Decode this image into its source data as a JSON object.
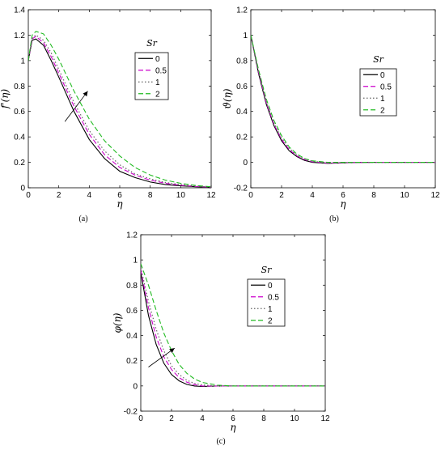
{
  "chart_data": [
    {
      "type": "line",
      "caption": "(a)",
      "xlabel": "η",
      "ylabel": "f'(η)",
      "xlim": [
        0,
        12
      ],
      "ylim": [
        0,
        1.4
      ],
      "xticks": [
        "0",
        "2",
        "4",
        "6",
        "8",
        "10",
        "12"
      ],
      "yticks": [
        "0",
        "0.2",
        "0.4",
        "0.6",
        "0.8",
        "1",
        "1.2",
        "1.4"
      ],
      "legend_title": "Sr",
      "legend_placement": "top-right",
      "x": [
        0,
        0.25,
        0.5,
        1,
        1.5,
        2,
        3,
        4,
        5,
        6,
        7,
        8,
        9,
        10,
        11,
        12
      ],
      "series": [
        {
          "name": "0",
          "color": "#000000",
          "style": "solid",
          "values": [
            1.0,
            1.16,
            1.17,
            1.12,
            1.0,
            0.87,
            0.6,
            0.38,
            0.23,
            0.13,
            0.08,
            0.045,
            0.025,
            0.015,
            0.008,
            0.004
          ]
        },
        {
          "name": "0.5",
          "color": "#cc00cc",
          "style": "dash",
          "values": [
            1.0,
            1.17,
            1.19,
            1.14,
            1.03,
            0.9,
            0.64,
            0.42,
            0.26,
            0.16,
            0.1,
            0.06,
            0.035,
            0.02,
            0.01,
            0.005
          ]
        },
        {
          "name": "1",
          "color": "#666666",
          "style": "dot",
          "values": [
            1.0,
            1.18,
            1.2,
            1.16,
            1.06,
            0.93,
            0.67,
            0.45,
            0.29,
            0.18,
            0.11,
            0.07,
            0.042,
            0.025,
            0.013,
            0.006
          ]
        },
        {
          "name": "2",
          "color": "#22bb22",
          "style": "dash",
          "values": [
            1.0,
            1.2,
            1.23,
            1.21,
            1.12,
            1.01,
            0.76,
            0.54,
            0.37,
            0.25,
            0.16,
            0.1,
            0.06,
            0.035,
            0.018,
            0.008
          ]
        }
      ],
      "arrow": {
        "from": [
          2.4,
          0.52
        ],
        "to": [
          3.9,
          0.76
        ]
      }
    },
    {
      "type": "line",
      "caption": "(b)",
      "xlabel": "η",
      "ylabel": "ϑ(η)",
      "xlim": [
        0,
        12
      ],
      "ylim": [
        -0.2,
        1.2
      ],
      "xticks": [
        "0",
        "2",
        "4",
        "6",
        "8",
        "10",
        "12"
      ],
      "yticks": [
        "-0.2",
        "0",
        "0.2",
        "0.4",
        "0.6",
        "0.8",
        "1",
        "1.2"
      ],
      "legend_title": "Sr",
      "legend_placement": "top-right",
      "x": [
        0,
        0.5,
        1,
        1.5,
        2,
        2.5,
        3,
        3.5,
        4,
        5,
        6,
        7,
        8,
        10,
        12
      ],
      "series": [
        {
          "name": "0",
          "color": "#000000",
          "style": "solid",
          "values": [
            1.0,
            0.7,
            0.46,
            0.29,
            0.17,
            0.09,
            0.045,
            0.015,
            0.0,
            -0.008,
            -0.004,
            -0.001,
            0.0,
            0.0,
            0.0
          ]
        },
        {
          "name": "0.5",
          "color": "#cc00cc",
          "style": "dash",
          "values": [
            1.0,
            0.71,
            0.47,
            0.3,
            0.18,
            0.1,
            0.05,
            0.02,
            0.004,
            -0.006,
            -0.003,
            -0.001,
            0.0,
            0.0,
            0.0
          ]
        },
        {
          "name": "1",
          "color": "#666666",
          "style": "dot",
          "values": [
            1.0,
            0.72,
            0.48,
            0.31,
            0.19,
            0.11,
            0.055,
            0.025,
            0.008,
            -0.004,
            -0.002,
            0.0,
            0.0,
            0.0,
            0.0
          ]
        },
        {
          "name": "2",
          "color": "#22bb22",
          "style": "dash",
          "values": [
            1.0,
            0.73,
            0.5,
            0.33,
            0.21,
            0.12,
            0.065,
            0.03,
            0.012,
            0.0,
            0.0,
            0.0,
            0.0,
            0.0,
            0.0
          ]
        }
      ]
    },
    {
      "type": "line",
      "caption": "(c)",
      "xlabel": "η",
      "ylabel": "φ(η)",
      "xlim": [
        0,
        12
      ],
      "ylim": [
        -0.2,
        1.2
      ],
      "xticks": [
        "0",
        "2",
        "4",
        "6",
        "8",
        "10",
        "12"
      ],
      "yticks": [
        "-0.2",
        "0",
        "0.2",
        "0.4",
        "0.6",
        "0.8",
        "1",
        "1.2"
      ],
      "legend_title": "Sr",
      "legend_placement": "top-right",
      "x": [
        0,
        0.5,
        1,
        1.5,
        2,
        2.5,
        3,
        3.5,
        4,
        5,
        6,
        8,
        10,
        12
      ],
      "series": [
        {
          "name": "0",
          "color": "#000000",
          "style": "solid",
          "values": [
            0.9,
            0.56,
            0.33,
            0.18,
            0.09,
            0.04,
            0.012,
            0.0,
            -0.004,
            0.0,
            0.0,
            0.0,
            0.0,
            0.0
          ]
        },
        {
          "name": "0.5",
          "color": "#cc00cc",
          "style": "dash",
          "values": [
            0.92,
            0.62,
            0.39,
            0.23,
            0.13,
            0.065,
            0.03,
            0.01,
            0.0,
            0.0,
            0.0,
            0.0,
            0.0,
            0.0
          ]
        },
        {
          "name": "1",
          "color": "#666666",
          "style": "dot",
          "values": [
            0.94,
            0.67,
            0.45,
            0.28,
            0.16,
            0.09,
            0.045,
            0.02,
            0.008,
            0.0,
            0.0,
            0.0,
            0.0,
            0.0
          ]
        },
        {
          "name": "2",
          "color": "#22bb22",
          "style": "dash",
          "values": [
            0.97,
            0.8,
            0.6,
            0.42,
            0.28,
            0.17,
            0.1,
            0.055,
            0.028,
            0.006,
            0.0,
            0.0,
            0.0,
            0.0
          ]
        }
      ],
      "arrow": {
        "from": [
          0.5,
          0.15
        ],
        "to": [
          2.2,
          0.3
        ]
      }
    }
  ]
}
